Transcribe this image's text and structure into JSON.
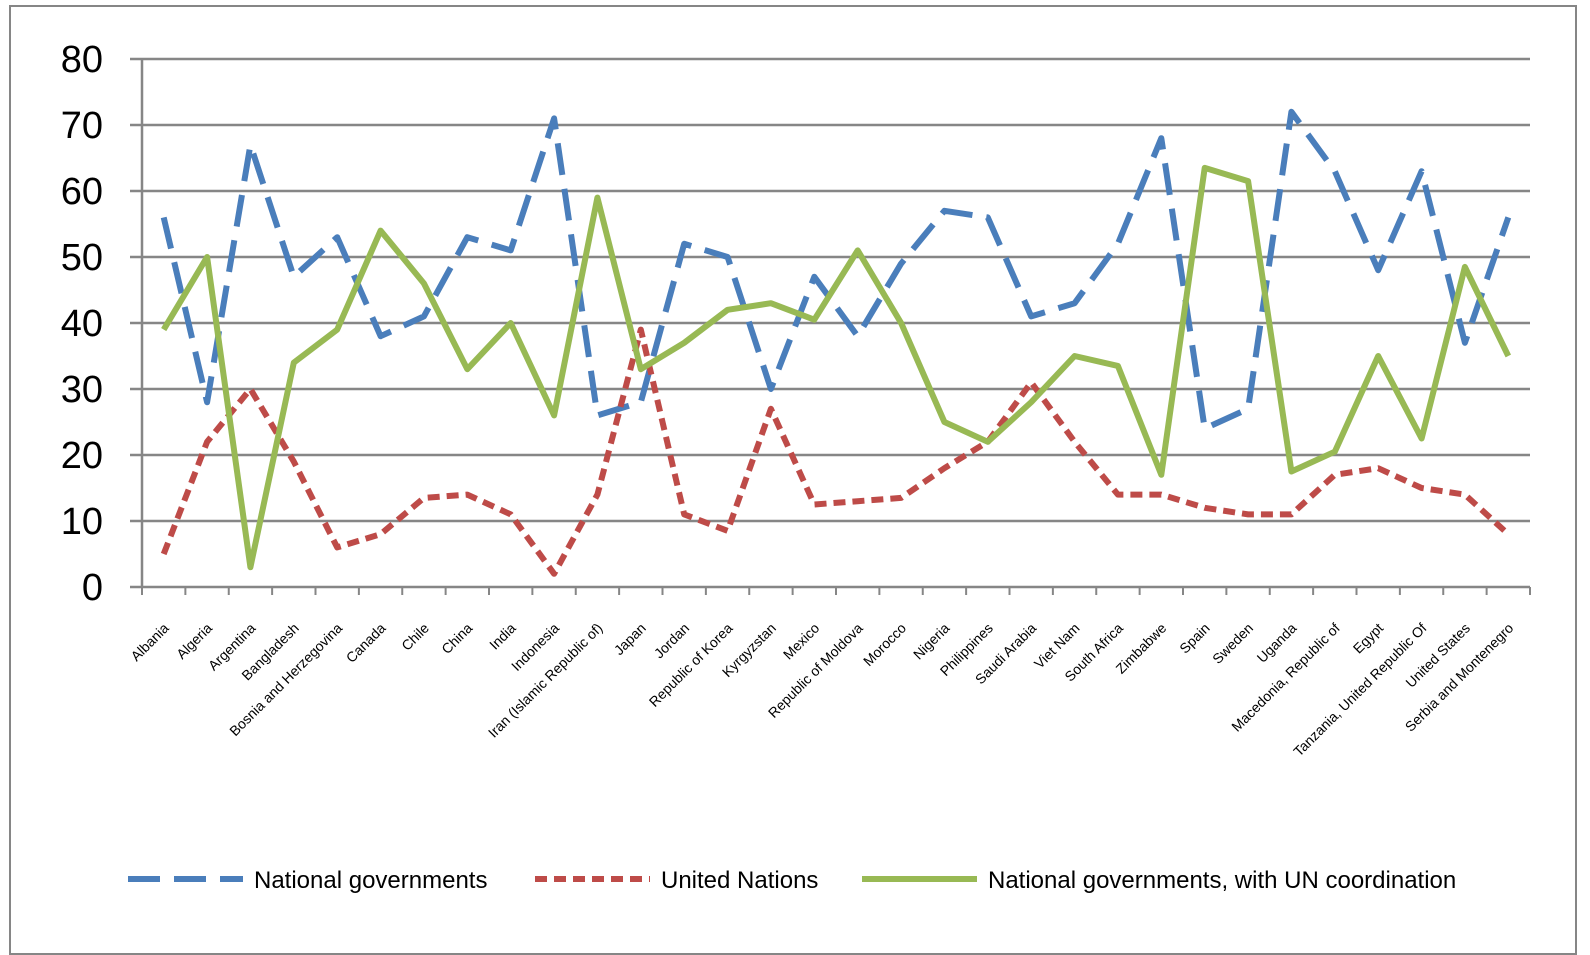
{
  "chart_data": {
    "type": "line",
    "title": "",
    "xlabel": "",
    "ylabel": "",
    "ylim": [
      0,
      80
    ],
    "yticks": [
      0,
      10,
      20,
      30,
      40,
      50,
      60,
      70,
      80
    ],
    "grid": true,
    "legend_position": "bottom",
    "categories": [
      "Albania",
      "Algeria",
      "Argentina",
      "Bangladesh",
      "Bosnia and Herzegovina",
      "Canada",
      "Chile",
      "China",
      "India",
      "Indonesia",
      "Iran (Islamic Republic of)",
      "Japan",
      "Jordan",
      "Republic of Korea",
      "Kyrgyzstan",
      "Mexico",
      "Republic of Moldova",
      "Morocco",
      "Nigeria",
      "Philippines",
      "Saudi Arabia",
      "Viet Nam",
      "South Africa",
      "Zimbabwe",
      "Spain",
      "Sweden",
      "Uganda",
      "Macedonia, Republic of",
      "Egypt",
      "Tanzania, United Republic Of",
      "United States",
      "Serbia and Montenegro"
    ],
    "series": [
      {
        "name": "National governments",
        "color": "#4a7ebb",
        "dash": "long-dash",
        "values": [
          56,
          28,
          67,
          47,
          53,
          38,
          41,
          53,
          51,
          71,
          26,
          28,
          52,
          50,
          30,
          47,
          38,
          49,
          57,
          56,
          41,
          43,
          52,
          68,
          24,
          27,
          72,
          63,
          48,
          63,
          37,
          56
        ]
      },
      {
        "name": "United Nations",
        "color": "#be4b48",
        "dash": "short-dash",
        "values": [
          5,
          22,
          30,
          19,
          6,
          8,
          13.5,
          14,
          11,
          2,
          14,
          39,
          11,
          8.5,
          27,
          12.5,
          13,
          13.5,
          18,
          22,
          31,
          22,
          14,
          14,
          12,
          11,
          11,
          17,
          18,
          15,
          14,
          8
        ]
      },
      {
        "name": "National governments, with UN coordination",
        "color": "#98b954",
        "dash": "solid",
        "values": [
          39,
          50,
          3,
          34,
          39,
          54,
          46,
          33,
          40,
          26,
          59,
          33,
          37,
          42,
          43,
          40.5,
          51,
          40,
          25,
          22,
          28,
          35,
          33.5,
          17,
          63.5,
          61.5,
          17.5,
          20.5,
          35,
          22.5,
          48.5,
          35
        ]
      }
    ]
  }
}
